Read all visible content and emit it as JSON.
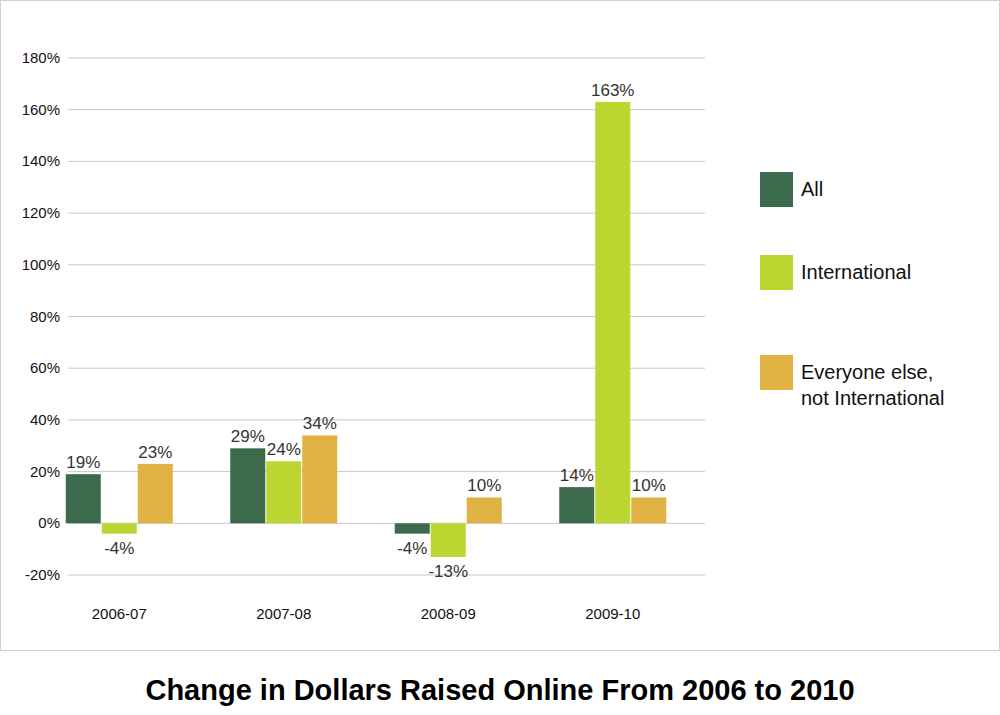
{
  "chart_data": {
    "type": "bar",
    "title": "Change in Dollars Raised Online From 2006 to 2010",
    "categories": [
      "2006-07",
      "2007-08",
      "2008-09",
      "2009-10"
    ],
    "series": [
      {
        "name": "All",
        "color": "#3c6a4c",
        "values": [
          19,
          29,
          -4,
          14
        ],
        "value_labels": [
          "19%",
          "29%",
          "-4%",
          "14%"
        ]
      },
      {
        "name": "International",
        "color": "#bcd531",
        "values": [
          -4,
          24,
          -13,
          163
        ],
        "value_labels": [
          "-4%",
          "24%",
          "-13%",
          "163%"
        ]
      },
      {
        "name": "Everyone else, not International",
        "color": "#e0b143",
        "values": [
          23,
          34,
          10,
          10
        ],
        "value_labels": [
          "23%",
          "34%",
          "10%",
          "10%"
        ]
      }
    ],
    "ylim": [
      -20,
      180
    ],
    "yticks": [
      {
        "value": -20,
        "label": "-20%"
      },
      {
        "value": 0,
        "label": "0%"
      },
      {
        "value": 20,
        "label": "20%"
      },
      {
        "value": 40,
        "label": "40%"
      },
      {
        "value": 60,
        "label": "60%"
      },
      {
        "value": 80,
        "label": "80%"
      },
      {
        "value": 100,
        "label": "100%"
      },
      {
        "value": 120,
        "label": "120%"
      },
      {
        "value": 140,
        "label": "140%"
      },
      {
        "value": 160,
        "label": "160%"
      },
      {
        "value": 180,
        "label": "180%"
      }
    ],
    "grid": true,
    "legend": "right",
    "data_labels": true
  }
}
